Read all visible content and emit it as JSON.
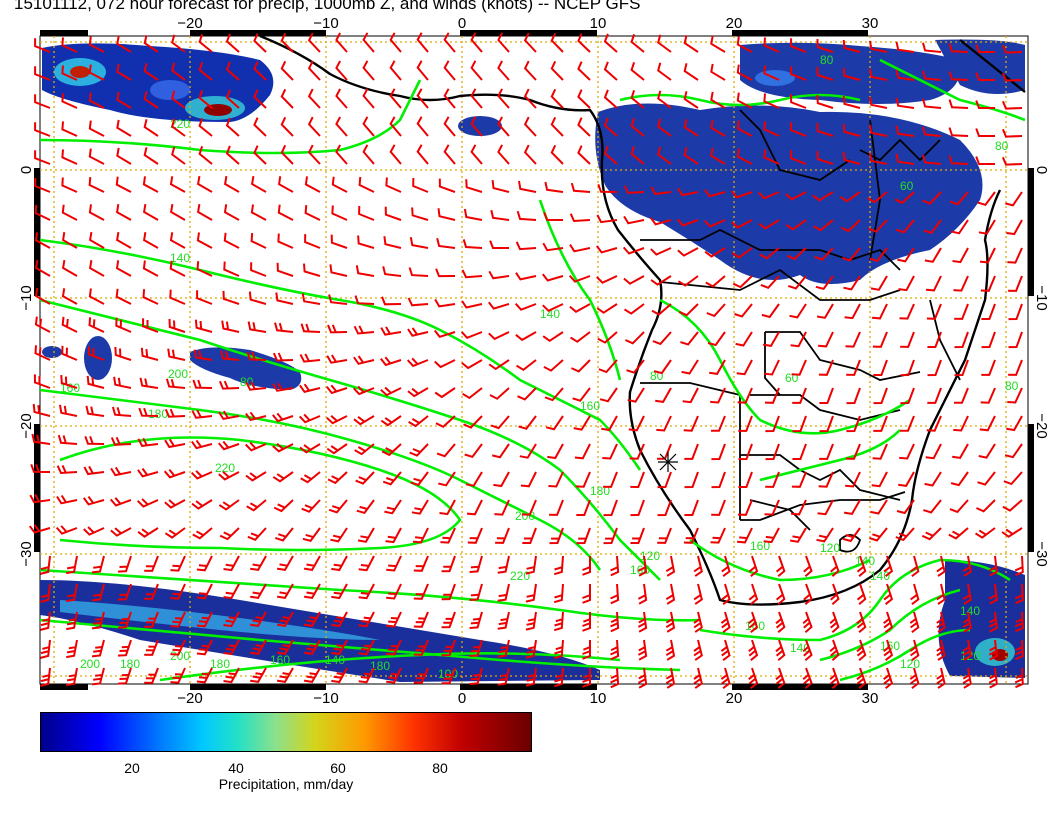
{
  "title": "15101112, 072 hour forecast for precip, 1000mb Z, and winds (knots) -- NCEP GFS",
  "axes": {
    "lon_ticks": [
      "−20",
      "−10",
      "0",
      "10",
      "20",
      "30"
    ],
    "lat_ticks": [
      "0",
      "−10",
      "−20",
      "−30"
    ]
  },
  "colorbar": {
    "ticks": [
      "20",
      "40",
      "60",
      "80"
    ],
    "label": "Precipitation, mm/day",
    "range": [
      0,
      100
    ]
  },
  "contour_labels": [
    "140",
    "160",
    "180",
    "200",
    "220",
    "160",
    "180",
    "200",
    "220",
    "140",
    "160",
    "180",
    "200",
    "140",
    "160",
    "140",
    "160",
    "180",
    "220",
    "200",
    "180",
    "160",
    "140",
    "120",
    "100",
    "120",
    "140",
    "80",
    "60",
    "80",
    "80",
    "160",
    "80",
    "60",
    "80",
    "120",
    "140",
    "120"
  ],
  "colors": {
    "contour": "#00ee00",
    "barb": "#ee0000",
    "grid": "#ddaa00",
    "coast": "#000000"
  },
  "chart_data": {
    "type": "map",
    "extent": {
      "lon": [
        -30,
        41
      ],
      "lat": [
        -42,
        9
      ]
    },
    "grid": true,
    "fields": [
      "precipitation (shaded, mm/day)",
      "1000mb geopotential height (green contours)",
      "wind barbs (knots, red)"
    ]
  }
}
